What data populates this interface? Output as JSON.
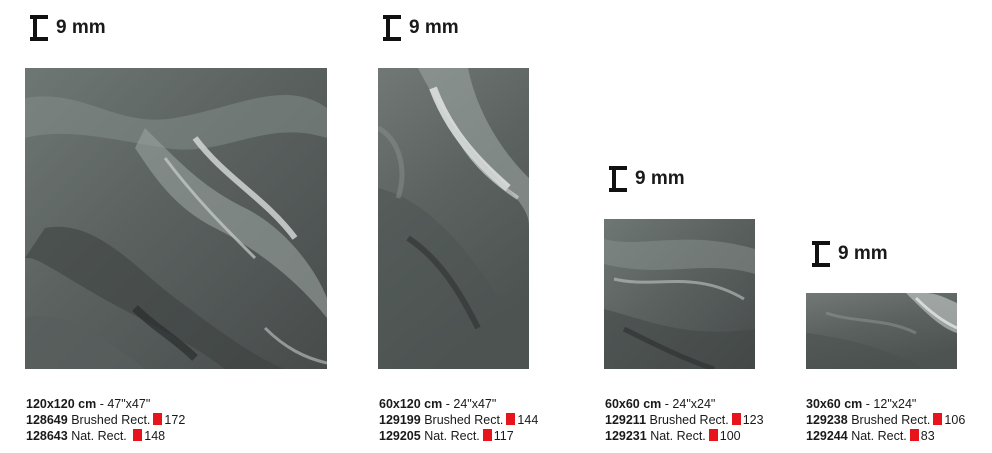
{
  "thickness_icon": "thickness-bracket-icon",
  "accent_color": "#e8141b",
  "tiles": [
    {
      "thickness": "9 mm",
      "size": "120x120 cm",
      "size_imperial": "- 47\"x47\"",
      "finishes": [
        {
          "code": "128649",
          "name": "Brushed Rect.",
          "qty": "172"
        },
        {
          "code": "128643",
          "name": "Nat. Rect.",
          "qty": "148"
        }
      ]
    },
    {
      "thickness": "9 mm",
      "size": "60x120 cm",
      "size_imperial": "- 24\"x47\"",
      "finishes": [
        {
          "code": "129199",
          "name": "Brushed Rect.",
          "qty": "144"
        },
        {
          "code": "129205",
          "name": "Nat. Rect.",
          "qty": "117"
        }
      ]
    },
    {
      "thickness": "9 mm",
      "size": "60x60 cm",
      "size_imperial": "- 24\"x24\"",
      "finishes": [
        {
          "code": "129211",
          "name": "Brushed Rect.",
          "qty": "123"
        },
        {
          "code": "129231",
          "name": "Nat. Rect.",
          "qty": "100"
        }
      ]
    },
    {
      "thickness": "9 mm",
      "size": "30x60 cm",
      "size_imperial": "- 12\"x24\"",
      "finishes": [
        {
          "code": "129238",
          "name": "Brushed Rect.",
          "qty": "106"
        },
        {
          "code": "129244",
          "name": "Nat. Rect.",
          "qty": "83"
        }
      ]
    }
  ]
}
